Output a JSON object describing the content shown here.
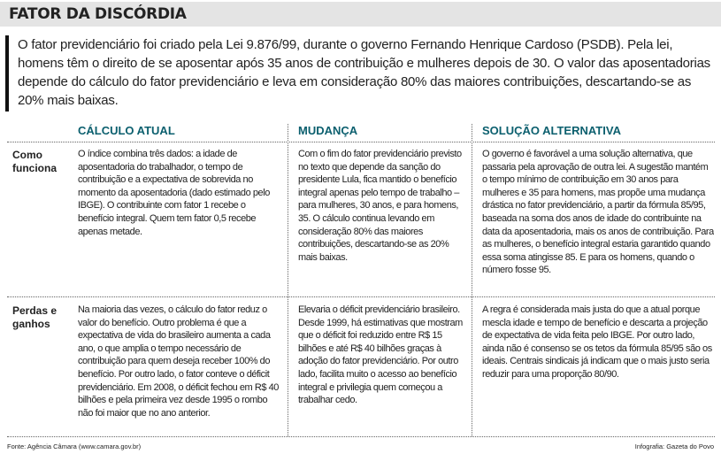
{
  "header": {
    "title": "FATOR DA DISCÓRDIA"
  },
  "intro": "O fator previdenciário foi criado pela Lei 9.876/99, durante o governo Fernando Henrique Cardoso (PSDB). Pela lei, homens têm o direito de se aposentar após 35 anos de contribuição e mulheres depois de 30. O valor das aposentadorias depende do cálculo do fator previdenciário e leva em consideração 80% das maiores contribuições, descartando-se as 20% mais baixas.",
  "table": {
    "columns": [
      "CÁLCULO ATUAL",
      "MUDANÇA",
      "SOLUÇÃO ALTERNATIVA"
    ],
    "rows": [
      {
        "label": "Como funciona",
        "cells": [
          "O índice combina três dados: a idade de aposentadoria do trabalhador, o tempo de contribuição e a expectativa de sobrevida no momento da aposentadoria (dado estimado pelo IBGE). O contribuinte com fator 1 recebe o benefício integral. Quem tem fator 0,5 recebe apenas metade.",
          "Com o fim do fator previdenciário previsto no texto que depende da sanção do presidente Lula, fica mantido o benefício integral apenas pelo tempo de trabalho – para mulheres, 30 anos, e para homens, 35. O cálculo continua levando em consideração 80% das maiores contribuições, descartando-se as 20% mais baixas.",
          "O governo é favorável a uma solução alternativa, que passaria pela aprovação de outra lei. A sugestão mantém o tempo mínimo de contribuição em 30 anos para mulheres e 35 para homens, mas propõe uma mudança drástica no fator previdenciário, a partir da fórmula 85/95, baseada na soma dos anos de idade do contribuinte na data da aposentadoria, mais os anos de contribuição. Para as mulheres, o benefício integral estaria garantido quando essa soma atingisse 85. E para os homens, quando o número fosse 95."
        ]
      },
      {
        "label": "Perdas e ganhos",
        "cells": [
          "Na maioria das vezes, o cálculo do fator reduz o valor do benefício. Outro problema é que a expectativa de vida do brasileiro aumenta a cada ano, o que amplia o tempo necessário de contribuição para quem deseja receber 100% do benefício. Por outro lado, o fator conteve o déficit previdenciário. Em 2008, o déficit fechou em R$ 40 bilhões e pela primeira vez desde 1995 o rombo não foi maior que no ano anterior.",
          "Elevaria o déficit previdenciário brasileiro. Desde 1999, há estimativas que mostram que o déficit foi reduzido entre R$ 15 bilhões e até R$ 40 bilhões graças à adoção do fator previdenciário. Por outro lado, facilita muito o acesso ao benefício integral e privilegia quem começou a trabalhar cedo.",
          "A regra é considerada mais justa do que a atual porque mescla idade e tempo de benefício e descarta a projeção de expectativa de vida feita pelo IBGE. Por outro lado, ainda não é consenso se os tetos da fórmula 85/95 são os ideais. Centrais sindicais já indicam que o mais justo seria reduzir para uma proporção 80/90."
        ]
      }
    ]
  },
  "footer": {
    "source": "Fonte: Agência Câmara (www.camara.gov.br)",
    "credit": "Infografia: Gazeta do Povo"
  }
}
